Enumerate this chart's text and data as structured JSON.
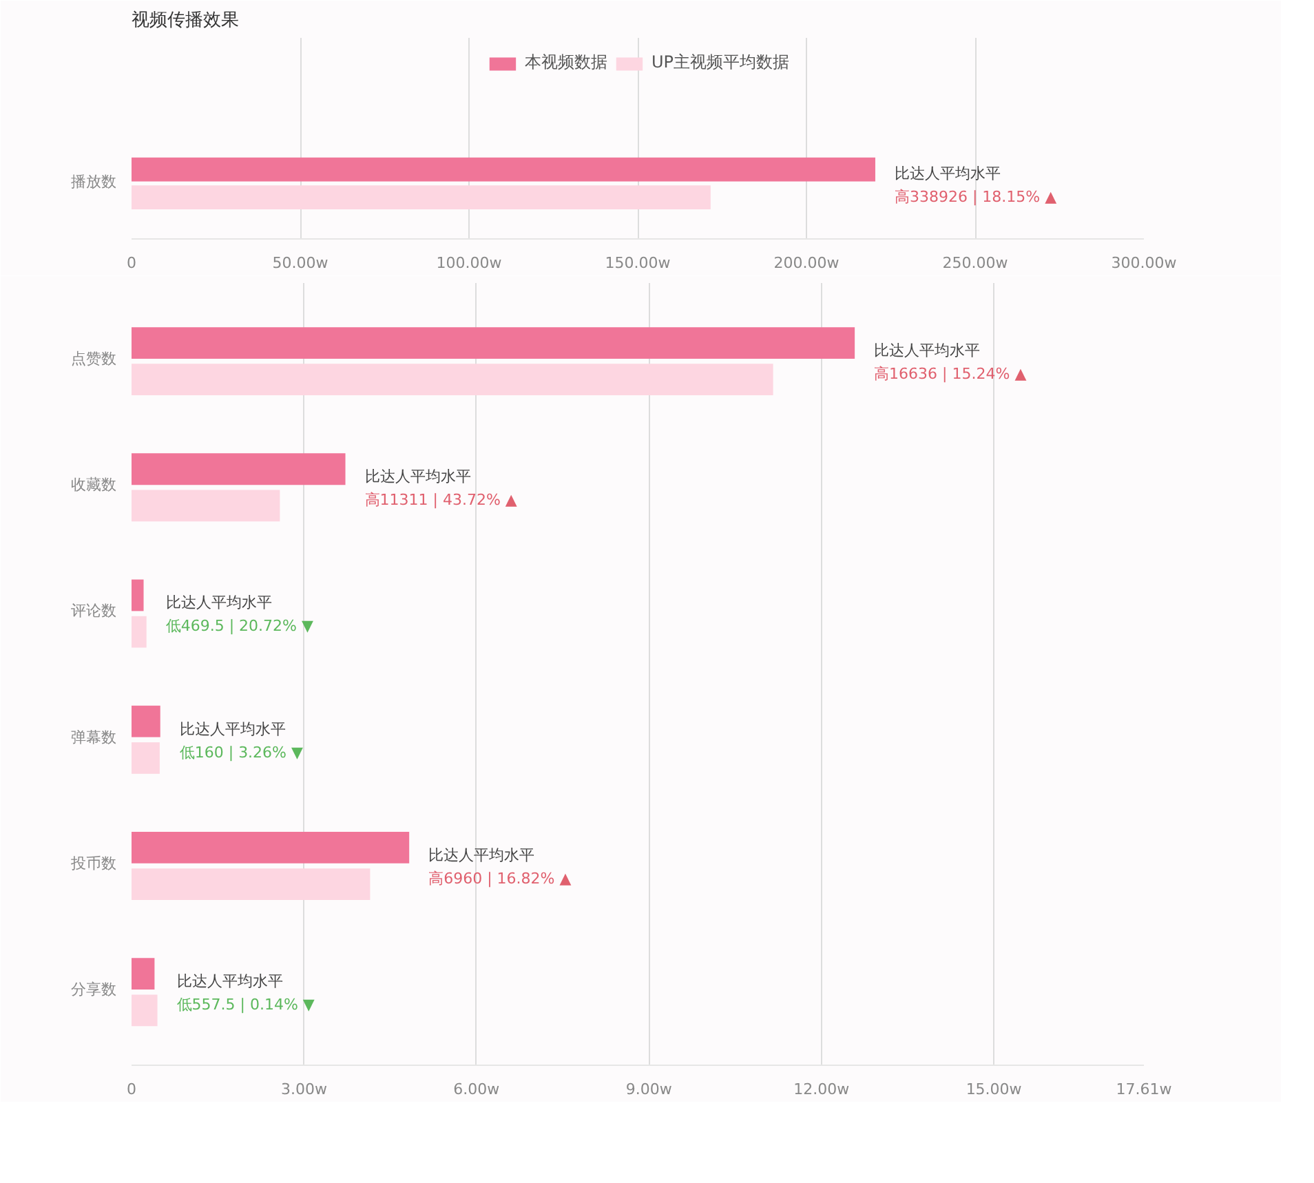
{
  "chart_data": [
    {
      "type": "bar",
      "orientation": "horizontal",
      "title": "视频传播效果",
      "categories": [
        "播放数"
      ],
      "series": [
        {
          "name": "本视频数据",
          "color": "#f07598",
          "values": [
            220.4
          ]
        },
        {
          "name": "UP主视频平均数据",
          "color": "#fdd6e1",
          "values": [
            171.6
          ]
        }
      ],
      "xlim": [
        0,
        300
      ],
      "xticks": [
        0,
        {
          "value": 50,
          "label": "50.00w"
        },
        {
          "value": 100,
          "label": "100.00w"
        },
        {
          "value": 150,
          "label": "150.00w"
        },
        {
          "value": 200,
          "label": "200.00w"
        },
        {
          "value": 250,
          "label": "250.00w"
        },
        {
          "value": 300,
          "label": "300.00w"
        }
      ],
      "grid": "x",
      "legend": "top",
      "annotations": [
        {
          "text": "比达人平均水平",
          "x": 220.4,
          "y": "播放数"
        },
        {
          "text": "高338926 | 18.15% ▲",
          "x": 220.4,
          "y": "播放数"
        }
      ]
    },
    {
      "type": "bar",
      "orientation": "horizontal",
      "categories": [
        "点赞数",
        "收藏数",
        "评论数",
        "弹幕数",
        "投币数",
        "分享数"
      ],
      "series": [
        {
          "color": "#f07598",
          "values": [
            12.58,
            3.72,
            0.21,
            0.5,
            4.83,
            0.4
          ]
        },
        {
          "color": "#fdd6e1",
          "values": [
            11.16,
            2.58,
            0.26,
            0.49,
            4.15,
            0.45
          ]
        }
      ],
      "xlim": [
        0,
        17.61
      ],
      "xticks": [
        0,
        {
          "value": 3,
          "label": "3.00w"
        },
        {
          "value": 6,
          "label": "6.00w"
        },
        {
          "value": 9,
          "label": "9.00w"
        },
        {
          "value": 12,
          "label": "12.00w"
        },
        {
          "value": 15,
          "label": "15.00w"
        },
        {
          "value": 17.61,
          "label": "17.61w"
        }
      ],
      "grid": "x",
      "annotations": [
        {
          "text": "比达人平均水平",
          "x": 12.58,
          "y": "点赞数"
        },
        {
          "text": "高16636 | 15.24% ▲",
          "x": 12.58,
          "y": "点赞数"
        },
        {
          "text": "比达人平均水平",
          "x": 3.72,
          "y": "收藏数"
        },
        {
          "text": "高11311 | 43.72% ▲",
          "x": 3.72,
          "y": "收藏数"
        },
        {
          "text": "比达人平均水平",
          "x": 0.26,
          "y": "评论数"
        },
        {
          "text": "低469.5 | 20.72% ▼",
          "x": 0.26,
          "y": "评论数"
        },
        {
          "text": "比达人平均水平",
          "x": 0.5,
          "y": "弹幕数"
        },
        {
          "text": "低160 | 3.26% ▼",
          "x": 0.5,
          "y": "弹幕数"
        },
        {
          "text": "比达人平均水平",
          "x": 4.83,
          "y": "投币数"
        },
        {
          "text": "高6960 | 16.82% ▲",
          "x": 4.83,
          "y": "投币数"
        },
        {
          "text": "比达人平均水平",
          "x": 0.45,
          "y": "分享数"
        },
        {
          "text": "低557.5 | 0.14% ▼",
          "x": 0.45,
          "y": "分享数"
        }
      ]
    }
  ]
}
